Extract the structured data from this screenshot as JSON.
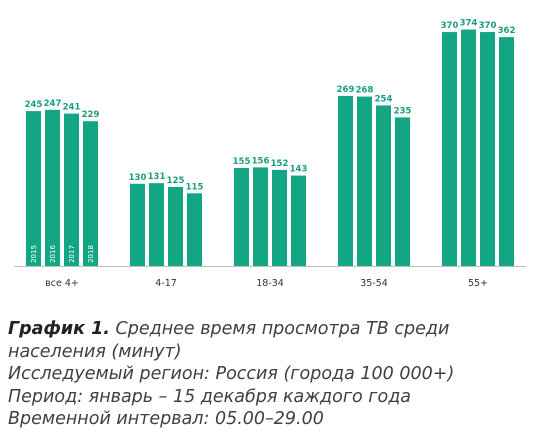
{
  "chart_data": {
    "type": "bar",
    "categories": [
      "все 4+",
      "4-17",
      "18-34",
      "35-54",
      "55+"
    ],
    "series": [
      {
        "name": "2015",
        "values": [
          245,
          130,
          155,
          269,
          370
        ]
      },
      {
        "name": "2016",
        "values": [
          247,
          131,
          156,
          268,
          374
        ]
      },
      {
        "name": "2017",
        "values": [
          241,
          125,
          152,
          254,
          370
        ]
      },
      {
        "name": "2018",
        "values": [
          229,
          115,
          143,
          235,
          362
        ]
      }
    ],
    "title": "",
    "xlabel": "",
    "ylabel": "",
    "ylim": [
      0,
      378
    ],
    "grid": false,
    "legend": "none",
    "bar_color": "#13a684",
    "label_color": "#1a9e7c"
  },
  "caption": {
    "figure_label": "График 1.",
    "title_part1": "Среднее время просмотра ТВ среди",
    "title_part2": "населения (минут)",
    "region": "Исследуемый регион: Россия (города 100 000+)",
    "period": "Период: январь – 15 декабря каждого года",
    "interval": "Временной интервал: 05.00–29.00"
  }
}
